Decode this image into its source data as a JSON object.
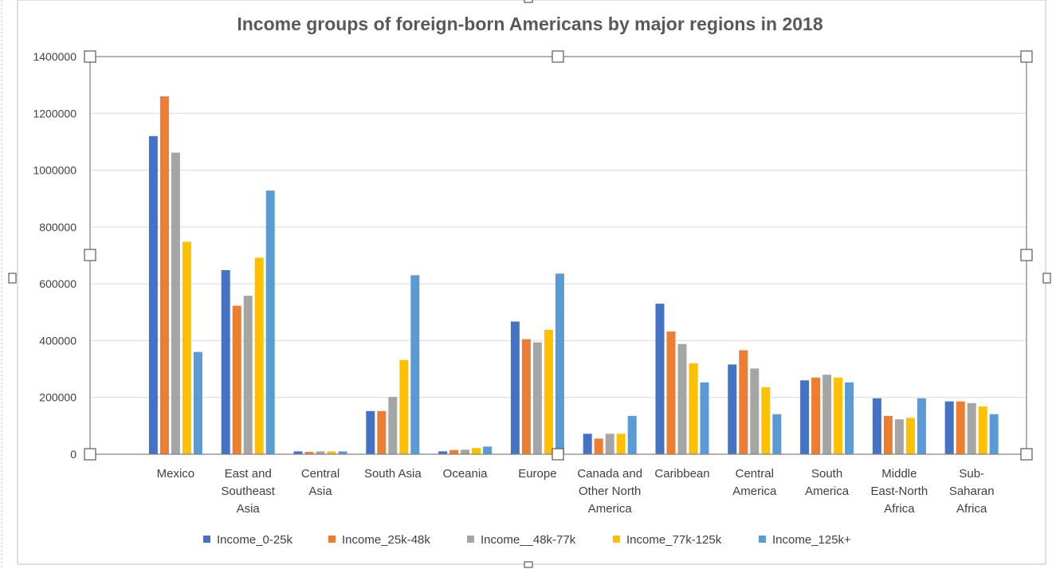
{
  "chart_data": {
    "type": "bar",
    "title": "Income groups of foreign-born Americans by major regions in 2018",
    "xlabel": "",
    "ylabel": "",
    "ylim": [
      0,
      1400000
    ],
    "yticks": [
      0,
      200000,
      400000,
      600000,
      800000,
      1000000,
      1200000,
      1400000
    ],
    "grid": true,
    "legend_position": "bottom",
    "categories": [
      [
        "Mexico"
      ],
      [
        "East and",
        "Southeast",
        "Asia"
      ],
      [
        "Central",
        "Asia"
      ],
      [
        "South Asia"
      ],
      [
        "Oceania"
      ],
      [
        "Europe"
      ],
      [
        "Canada and",
        "Other North",
        "America"
      ],
      [
        "Caribbean"
      ],
      [
        "Central",
        "America"
      ],
      [
        "South",
        "America"
      ],
      [
        "Middle",
        "East-North",
        "Africa"
      ],
      [
        "Sub-",
        "Saharan",
        "Africa"
      ]
    ],
    "series": [
      {
        "name": "Income_0-25k",
        "color": "#4472C4",
        "values": [
          1120000,
          648000,
          10000,
          152000,
          10000,
          467000,
          72000,
          530000,
          316000,
          260000,
          197000,
          186000
        ]
      },
      {
        "name": "Income_25k-48k",
        "color": "#ED7D31",
        "values": [
          1260000,
          523000,
          8000,
          152000,
          15000,
          405000,
          55000,
          432000,
          366000,
          270000,
          135000,
          186000
        ]
      },
      {
        "name": "Income__48k-77k",
        "color": "#A5A5A5",
        "values": [
          1062000,
          558000,
          10000,
          202000,
          16000,
          394000,
          72000,
          388000,
          302000,
          280000,
          123000,
          180000
        ]
      },
      {
        "name": "Income_77k-125k",
        "color": "#FFC000",
        "values": [
          748000,
          692000,
          10000,
          332000,
          22000,
          438000,
          72000,
          320000,
          236000,
          270000,
          128000,
          168000
        ]
      },
      {
        "name": "Income_125k+",
        "color": "#5B9BD5",
        "values": [
          360000,
          928000,
          10000,
          630000,
          27000,
          636000,
          135000,
          253000,
          141000,
          253000,
          197000,
          141000
        ]
      }
    ]
  }
}
